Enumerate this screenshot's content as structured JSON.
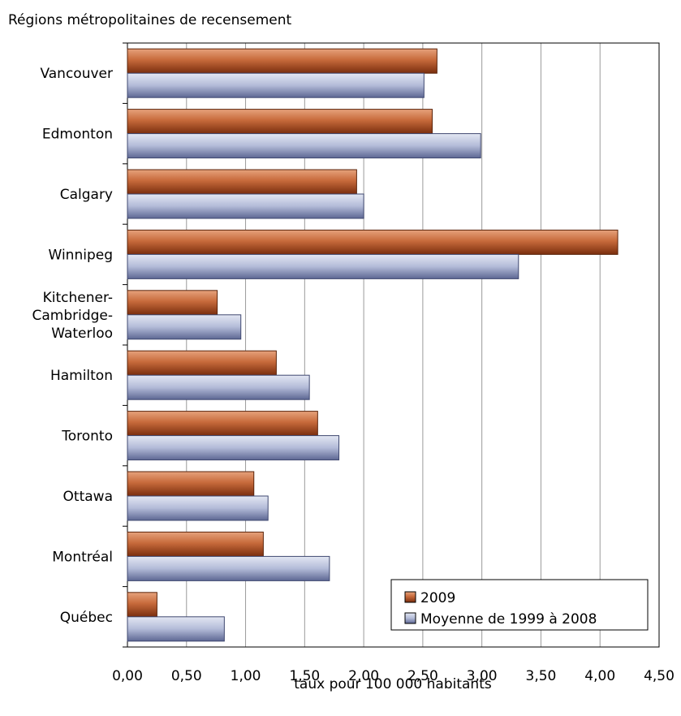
{
  "chart_data": {
    "type": "bar",
    "orientation": "horizontal",
    "title": "Régions métropolitaines de recensement",
    "xlabel": "taux pour 100 000 habitants",
    "categories": [
      [
        "Vancouver"
      ],
      [
        "Edmonton"
      ],
      [
        "Calgary"
      ],
      [
        "Winnipeg"
      ],
      [
        "Kitchener-",
        "Cambridge-",
        "Waterloo"
      ],
      [
        "Hamilton"
      ],
      [
        "Toronto"
      ],
      [
        "Ottawa"
      ],
      [
        "Montréal"
      ],
      [
        "Québec"
      ]
    ],
    "series": [
      {
        "name": "2009",
        "color": "#b4552a",
        "values": [
          2.62,
          2.58,
          1.94,
          4.15,
          0.76,
          1.26,
          1.61,
          1.07,
          1.15,
          0.25
        ]
      },
      {
        "name": "Moyenne de 1999 à 2008",
        "color": "#9ea6c9",
        "values": [
          2.51,
          2.99,
          2.0,
          3.31,
          0.96,
          1.54,
          1.79,
          1.19,
          1.71,
          0.82
        ]
      }
    ],
    "xlim": [
      0,
      4.5
    ],
    "xticks": [
      "0,00",
      "0,50",
      "1,00",
      "1,50",
      "2,00",
      "2,50",
      "3,00",
      "3,50",
      "4,00",
      "4,50"
    ],
    "grid": true,
    "legend_position": "bottom-right"
  }
}
